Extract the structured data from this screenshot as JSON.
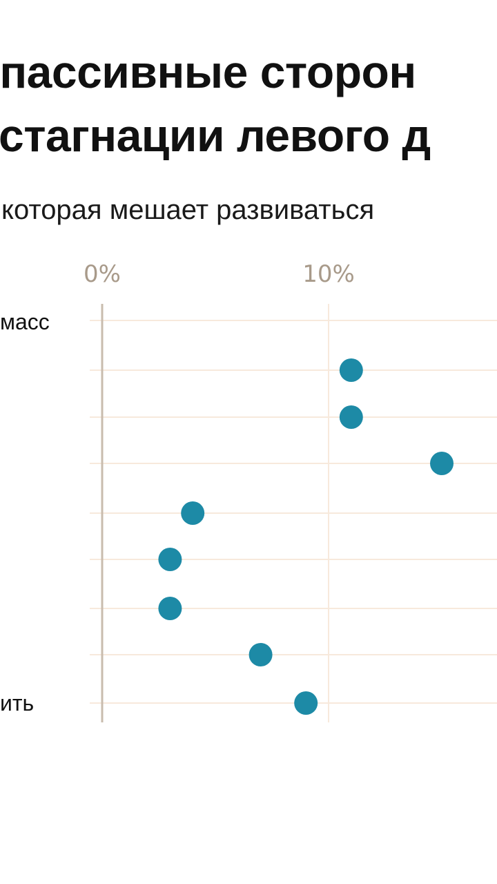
{
  "title": {
    "line1": "- пассивные сторон",
    "line2": "стагнации левого д"
  },
  "subtitle": "которая мешает развиваться",
  "row_labels": {
    "first": "масс",
    "last": "ить"
  },
  "chart_data": {
    "type": "scatter",
    "title": "- пассивные сторон стагнации левого д",
    "subtitle": "которая мешает развиваться",
    "x_ticks": [
      "0%",
      "10%"
    ],
    "x_unit": "%",
    "rows": 9,
    "values": [
      null,
      11,
      11,
      15,
      4,
      3,
      3,
      7,
      9
    ],
    "row_labels_visible": [
      "масс",
      "",
      "",
      "",
      "",
      "",
      "",
      "",
      "ить"
    ],
    "dot_color": "#1d8aa6",
    "grid_color": "#f7e9dc",
    "axis_color": "#c9bcae",
    "tick_color": "#a89a8a"
  }
}
